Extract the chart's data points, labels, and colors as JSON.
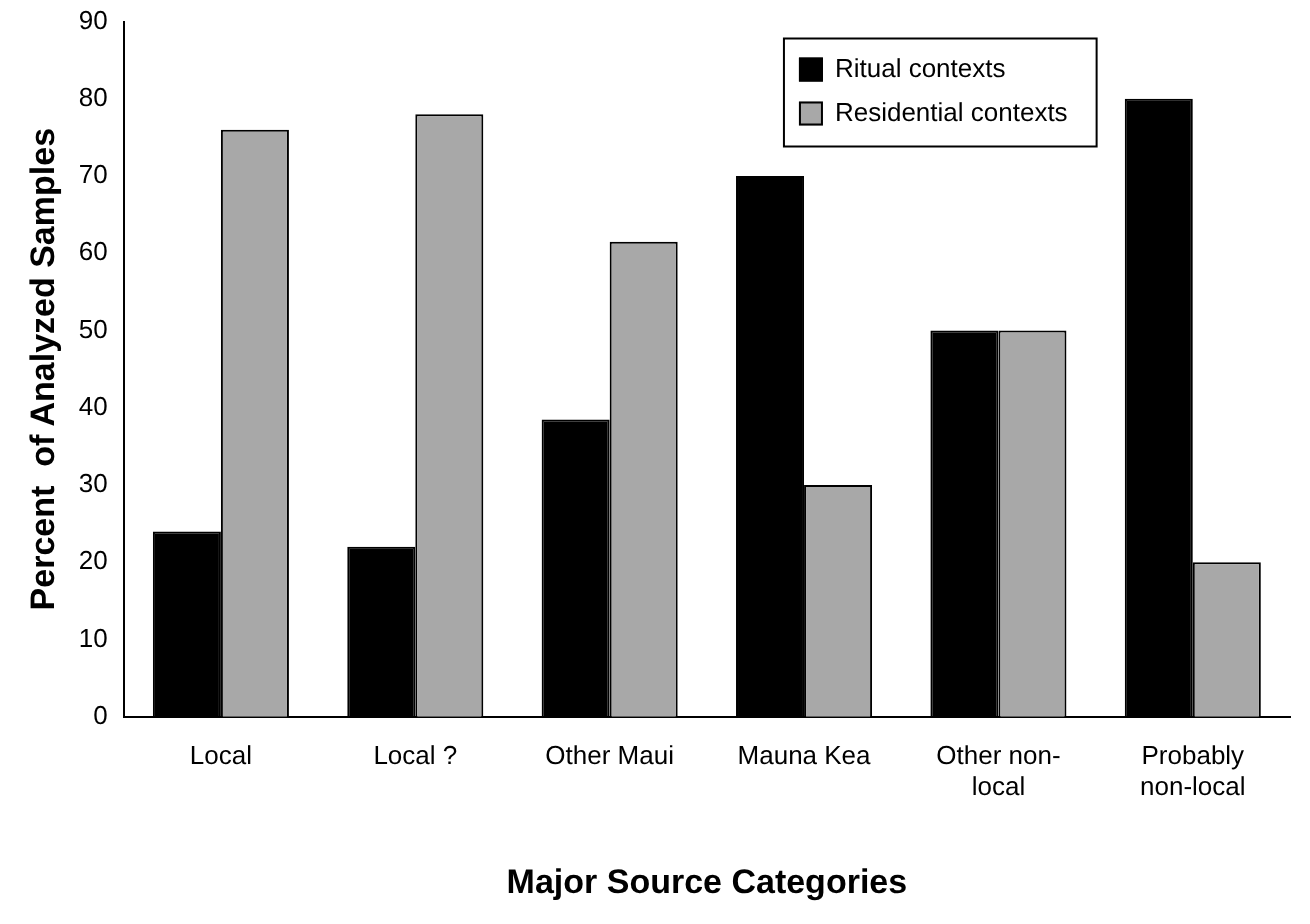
{
  "chart_data": {
    "type": "bar",
    "xlabel": "Major Source Categories",
    "ylabel": "Percent  of Analyzed Samples",
    "categories": [
      "Local",
      "Local ?",
      "Other Maui",
      "Mauna Kea",
      "Other non-local",
      "Probably non-local"
    ],
    "series": [
      {
        "name": "Ritual contexts",
        "color": "#000000",
        "values": [
          24,
          22,
          38.5,
          70,
          50,
          80
        ]
      },
      {
        "name": "Residential contexts",
        "color": "#a8a8a8",
        "values": [
          76,
          78,
          61.5,
          30,
          50,
          20
        ]
      }
    ],
    "ylim": [
      0,
      90
    ],
    "yticks": [
      0,
      10,
      20,
      30,
      40,
      50,
      60,
      70,
      80,
      90
    ],
    "grid": false,
    "legend": "top right"
  }
}
